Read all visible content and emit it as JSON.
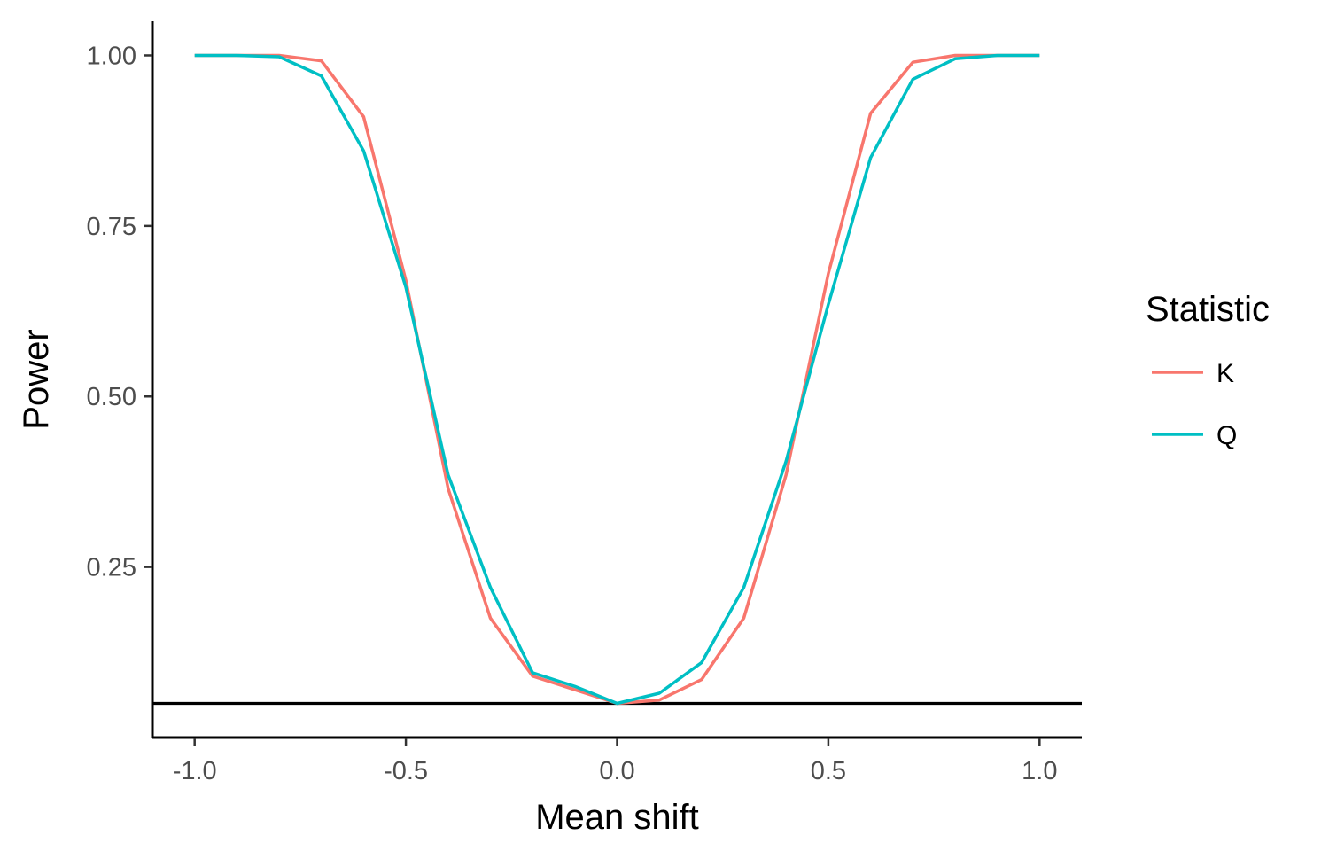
{
  "chart_data": {
    "type": "line",
    "title": "",
    "xlabel": "Mean shift",
    "ylabel": "Power",
    "xlim": [
      -1.1,
      1.1
    ],
    "ylim": [
      0,
      1.05
    ],
    "x_ticks": [
      -1.0,
      -0.5,
      0.0,
      0.5,
      1.0
    ],
    "x_tick_labels": [
      "-1.0",
      "-0.5",
      "0.0",
      "0.5",
      "1.0"
    ],
    "y_ticks": [
      0.25,
      0.5,
      0.75,
      1.0
    ],
    "y_tick_labels": [
      "0.25",
      "0.50",
      "0.75",
      "1.00"
    ],
    "reference_line_y": 0.05,
    "grid": false,
    "legend": {
      "title": "Statistic",
      "position": "right"
    },
    "x": [
      -1.0,
      -0.9,
      -0.8,
      -0.7,
      -0.6,
      -0.5,
      -0.4,
      -0.3,
      -0.2,
      -0.1,
      0.0,
      0.1,
      0.2,
      0.3,
      0.4,
      0.5,
      0.6,
      0.7,
      0.8,
      0.9,
      1.0
    ],
    "series": [
      {
        "name": "K",
        "color": "#F8766D",
        "values": [
          1.0,
          1.0,
          1.0,
          0.992,
          0.91,
          0.67,
          0.365,
          0.175,
          0.09,
          0.07,
          0.05,
          0.055,
          0.085,
          0.175,
          0.385,
          0.68,
          0.915,
          0.99,
          1.0,
          1.0,
          1.0
        ]
      },
      {
        "name": "Q",
        "color": "#00BFC4",
        "values": [
          1.0,
          1.0,
          0.998,
          0.97,
          0.86,
          0.66,
          0.385,
          0.22,
          0.095,
          0.075,
          0.05,
          0.065,
          0.11,
          0.22,
          0.405,
          0.635,
          0.85,
          0.965,
          0.995,
          1.0,
          1.0
        ]
      }
    ]
  }
}
